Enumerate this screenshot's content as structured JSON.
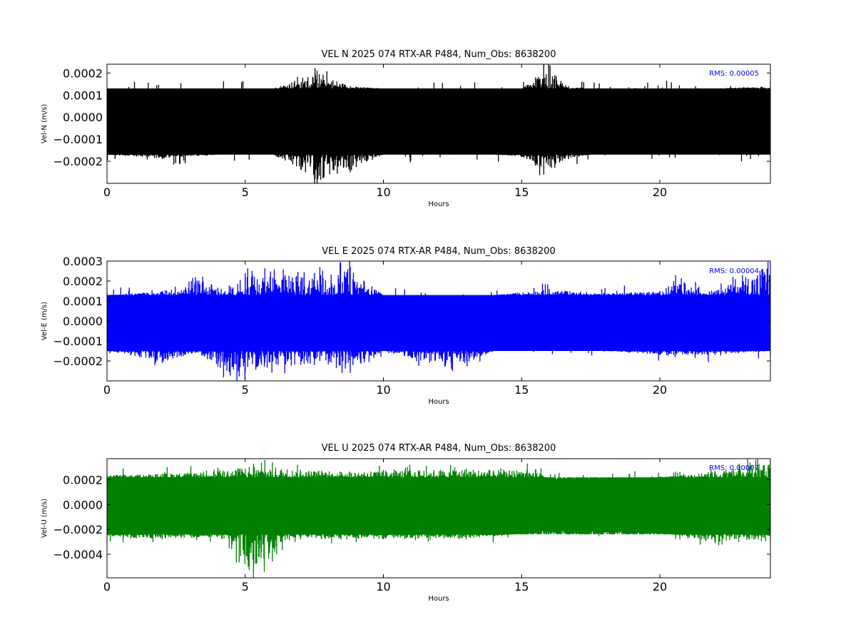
{
  "chart_data": [
    {
      "type": "line",
      "title": "VEL N 2025 074 RTX-AR  P484, Num_Obs: 8638200",
      "xlabel": "Hours",
      "ylabel": "Vel-N (m/s)",
      "xlim": [
        0,
        24
      ],
      "ylim": [
        -0.0003,
        0.00024
      ],
      "xticks": [
        0,
        5,
        10,
        15,
        20
      ],
      "xtick_labels": [
        "0",
        "5",
        "10",
        "15",
        "20"
      ],
      "yticks": [
        0.0002,
        0.0001,
        0.0,
        -0.0001,
        -0.0002
      ],
      "ytick_labels": [
        "0.0002",
        "0.0001",
        "0.0000",
        "−0.0001",
        "−0.0002"
      ],
      "annotation": "RMS:  0.00005",
      "color": "#000000",
      "annotation_color": "#0000ff",
      "grid": false,
      "series": [
        {
          "band": {
            "min": -0.00017,
            "max": 0.00013,
            "peak_min": -0.00023,
            "peak_max": 0.00019
          },
          "x": [
            0.0,
            2.0,
            4.0,
            6.0,
            7.6,
            8.8,
            10.0,
            12.0,
            14.0,
            15.0,
            15.5,
            15.8,
            16.2,
            16.7,
            17.5,
            20.0,
            22.0,
            24.0
          ],
          "y_max": [
            0.00013,
            0.00013,
            0.00013,
            0.00013,
            0.00021,
            0.00014,
            0.00013,
            0.00013,
            0.00013,
            0.00013,
            0.00018,
            0.00024,
            0.00019,
            0.00014,
            0.00013,
            0.00013,
            0.00013,
            0.00014
          ],
          "y_min": [
            -0.00017,
            -0.00019,
            -0.00017,
            -0.00017,
            -0.0003,
            -0.00025,
            -0.00017,
            -0.00017,
            -0.00017,
            -0.00018,
            -0.00022,
            -0.00026,
            -0.00023,
            -0.00019,
            -0.00017,
            -0.00017,
            -0.00017,
            -0.00017
          ]
        }
      ]
    },
    {
      "type": "line",
      "title": "VEL E 2025 074 RTX-AR  P484, Num_Obs: 8638200",
      "xlabel": "Hours",
      "ylabel": "Vel-E (m/s)",
      "xlim": [
        0,
        24
      ],
      "ylim": [
        -0.0003,
        0.0003
      ],
      "xticks": [
        0,
        5,
        10,
        15,
        20
      ],
      "xtick_labels": [
        "0",
        "5",
        "10",
        "15",
        "20"
      ],
      "yticks": [
        0.0003,
        0.0002,
        0.0001,
        0.0,
        -0.0001,
        -0.0002
      ],
      "ytick_labels": [
        "0.0003",
        "0.0002",
        "0.0001",
        "0.0000",
        "−0.0001",
        "−0.0002"
      ],
      "annotation": "RMS:  0.00004",
      "color": "#0000ff",
      "annotation_color": "#0000ff",
      "grid": false,
      "series": [
        {
          "band": {
            "min": -0.00015,
            "max": 0.00013,
            "peak_min": -0.00021,
            "peak_max": 0.00019
          },
          "x": [
            0.0,
            2.0,
            3.2,
            4.7,
            5.0,
            7.5,
            7.7,
            8.8,
            10.0,
            12.5,
            14.0,
            16.0,
            18.0,
            20.0,
            20.5,
            22.0,
            24.0
          ],
          "y_max": [
            0.00013,
            0.00015,
            0.00022,
            0.00014,
            0.00024,
            0.00024,
            0.00027,
            0.00027,
            0.00013,
            0.00013,
            0.00013,
            0.00016,
            0.00014,
            0.00015,
            0.0002,
            0.00015,
            0.0003
          ],
          "y_min": [
            -0.00015,
            -0.00021,
            -0.00016,
            -0.0003,
            -0.00026,
            -0.00022,
            -0.0002,
            -0.00026,
            -0.00015,
            -0.00025,
            -0.00015,
            -0.00015,
            -0.00015,
            -0.00017,
            -0.00017,
            -0.00017,
            -0.00015
          ]
        }
      ]
    },
    {
      "type": "line",
      "title": "VEL U 2025 074 RTX-AR  P484, Num_Obs: 8638200",
      "xlabel": "Hours",
      "ylabel": "Vel-U (m/s)",
      "xlim": [
        0,
        24
      ],
      "ylim": [
        -0.00059,
        0.00037
      ],
      "xticks": [
        0,
        5,
        10,
        15,
        20
      ],
      "xtick_labels": [
        "0",
        "5",
        "10",
        "15",
        "20"
      ],
      "yticks": [
        0.0002,
        0.0,
        -0.0002,
        -0.0004
      ],
      "ytick_labels": [
        "0.0002",
        "0.0000",
        "−0.0002",
        "−0.0004"
      ],
      "annotation": "RMS:  0.00007",
      "color": "#008000",
      "annotation_color": "#0000ff",
      "grid": false,
      "series": [
        {
          "band": {
            "min": -0.00024,
            "max": 0.00022,
            "peak_min": -0.00032,
            "peak_max": 0.00031
          },
          "x": [
            0.0,
            2.0,
            4.0,
            5.3,
            7.0,
            10.0,
            13.0,
            15.5,
            16.0,
            18.0,
            20.0,
            22.0,
            24.0
          ],
          "y_max": [
            0.00024,
            0.00025,
            0.00027,
            0.00033,
            0.00028,
            0.00028,
            0.00029,
            0.00028,
            0.0002,
            0.00021,
            0.00022,
            0.00027,
            0.00036
          ],
          "y_min": [
            -0.00026,
            -0.00028,
            -0.00026,
            -0.00059,
            -0.00028,
            -0.00028,
            -0.00028,
            -0.00022,
            -0.0002,
            -0.00021,
            -0.00022,
            -0.00031,
            -0.00028
          ]
        }
      ]
    }
  ]
}
